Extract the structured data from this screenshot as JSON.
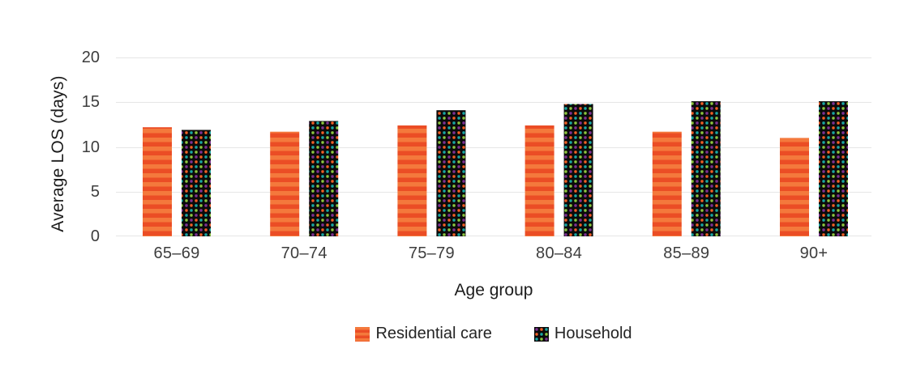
{
  "chart_data": {
    "type": "bar",
    "title": "",
    "categories": [
      "65–69",
      "70–74",
      "75–79",
      "80–84",
      "85–89",
      "90+"
    ],
    "series": [
      {
        "name": "Residential care",
        "style": "striped-orange",
        "values": [
          12.2,
          11.7,
          12.4,
          12.4,
          11.7,
          11.0
        ]
      },
      {
        "name": "Household",
        "style": "dotted-black",
        "values": [
          11.9,
          12.9,
          14.1,
          14.8,
          15.1,
          15.1
        ]
      }
    ],
    "xlabel": "Age group",
    "ylabel": "Average LOS (days)",
    "ylim": [
      0,
      20
    ],
    "yticks": [
      20,
      15,
      10,
      5,
      0
    ],
    "grid": "horizontal",
    "legend_position": "bottom",
    "colors": {
      "stripe_light": "#F4793C",
      "stripe_dark": "#EB4D25",
      "dot_background": "#0a0a0a",
      "dot_palette": [
        "#7E3192",
        "#F15F25",
        "#19A7A3",
        "#8CC63F"
      ],
      "gridline": "#E6E6E6",
      "tick_text": "#3D3D3D",
      "title_text": "#1C1C1C"
    }
  }
}
